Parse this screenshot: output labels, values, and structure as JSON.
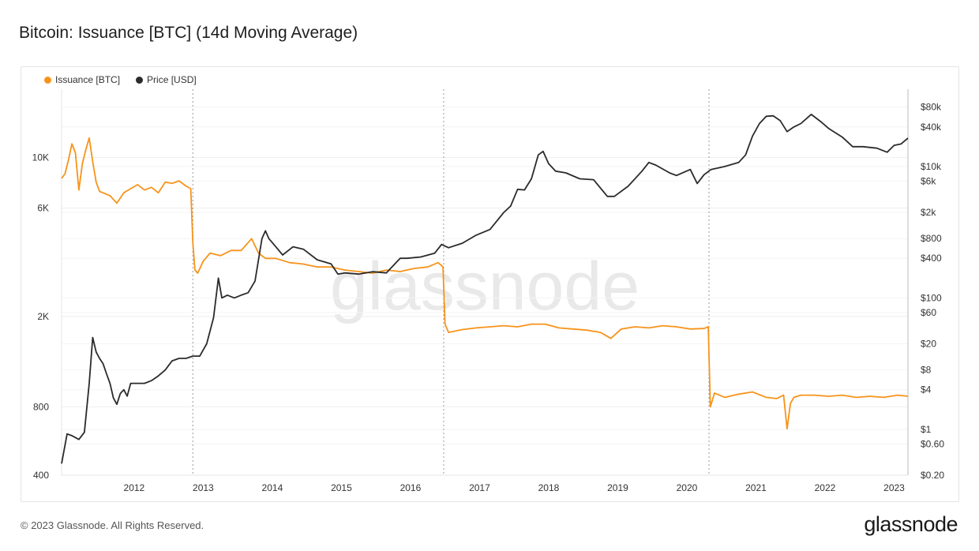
{
  "title": "Bitcoin: Issuance [BTC] (14d Moving Average)",
  "footer": "© 2023 Glassnode. All Rights Reserved.",
  "brand": "glassnode",
  "watermark": "glassnode",
  "colors": {
    "issuance": "#f7931a",
    "price": "#2b2b2b",
    "grid": "#eeeeee",
    "halving": "#999999"
  },
  "chart_data": {
    "type": "line",
    "title": "Bitcoin: Issuance [BTC] (14d Moving Average)",
    "legend": [
      "Issuance [BTC]",
      "Price [USD]"
    ],
    "legend_position": "top-left",
    "grid": true,
    "x_ticks": [
      "2012",
      "2013",
      "2014",
      "2015",
      "2016",
      "2017",
      "2018",
      "2019",
      "2020",
      "2021",
      "2022",
      "2023"
    ],
    "xlim": [
      2011.0,
      2023.25
    ],
    "y_left": {
      "label": "",
      "scale": "log",
      "ylim": [
        400,
        20000
      ],
      "ticks": [
        "400",
        "800",
        "2K",
        "6K",
        "10K"
      ],
      "tick_values": [
        400,
        800,
        2000,
        6000,
        10000
      ]
    },
    "y_right": {
      "label": "",
      "scale": "log",
      "ylim": [
        0.2,
        150000
      ],
      "ticks": [
        "$0.20",
        "$0.60",
        "$1",
        "$4",
        "$8",
        "$20",
        "$60",
        "$100",
        "$400",
        "$800",
        "$2k",
        "$6k",
        "$10k",
        "$40k",
        "$80k"
      ],
      "tick_values": [
        0.2,
        0.6,
        1,
        4,
        8,
        20,
        60,
        100,
        400,
        800,
        2000,
        6000,
        10000,
        40000,
        80000
      ]
    },
    "halvings": [
      2012.9,
      2016.53,
      2020.37
    ],
    "series": [
      {
        "name": "Issuance [BTC]",
        "axis": "left",
        "x": [
          2011.0,
          2011.05,
          2011.1,
          2011.15,
          2011.2,
          2011.25,
          2011.3,
          2011.35,
          2011.4,
          2011.45,
          2011.5,
          2011.55,
          2011.6,
          2011.7,
          2011.8,
          2011.9,
          2012.0,
          2012.1,
          2012.2,
          2012.3,
          2012.4,
          2012.5,
          2012.6,
          2012.7,
          2012.8,
          2012.87,
          2012.9,
          2012.93,
          2012.97,
          2013.05,
          2013.15,
          2013.3,
          2013.45,
          2013.6,
          2013.75,
          2013.85,
          2013.95,
          2014.1,
          2014.3,
          2014.5,
          2014.7,
          2014.9,
          2015.1,
          2015.3,
          2015.5,
          2015.7,
          2015.9,
          2016.1,
          2016.3,
          2016.45,
          2016.52,
          2016.55,
          2016.6,
          2016.8,
          2017.0,
          2017.2,
          2017.4,
          2017.6,
          2017.8,
          2018.0,
          2018.2,
          2018.4,
          2018.6,
          2018.8,
          2018.95,
          2019.1,
          2019.3,
          2019.5,
          2019.7,
          2019.9,
          2020.1,
          2020.3,
          2020.36,
          2020.39,
          2020.45,
          2020.6,
          2020.8,
          2021.0,
          2021.2,
          2021.35,
          2021.45,
          2021.5,
          2021.55,
          2021.6,
          2021.7,
          2021.9,
          2022.1,
          2022.3,
          2022.5,
          2022.7,
          2022.9,
          2023.1,
          2023.25
        ],
        "values": [
          8100,
          8500,
          9800,
          11500,
          10500,
          7200,
          9400,
          10800,
          12200,
          9600,
          7800,
          7100,
          7000,
          6800,
          6300,
          7000,
          7300,
          7600,
          7200,
          7400,
          7000,
          7800,
          7700,
          7900,
          7500,
          7300,
          4200,
          3200,
          3100,
          3500,
          3800,
          3700,
          3900,
          3900,
          4400,
          3800,
          3600,
          3600,
          3450,
          3400,
          3300,
          3300,
          3200,
          3150,
          3100,
          3200,
          3150,
          3250,
          3300,
          3450,
          3300,
          1850,
          1700,
          1750,
          1780,
          1800,
          1820,
          1800,
          1850,
          1850,
          1780,
          1760,
          1740,
          1700,
          1600,
          1760,
          1800,
          1780,
          1820,
          1800,
          1760,
          1770,
          1800,
          800,
          920,
          880,
          910,
          930,
          880,
          870,
          900,
          640,
          830,
          880,
          900,
          900,
          890,
          900,
          880,
          890,
          880,
          900,
          890
        ]
      },
      {
        "name": "Price [USD]",
        "axis": "right",
        "x": [
          2011.0,
          2011.08,
          2011.15,
          2011.25,
          2011.33,
          2011.4,
          2011.45,
          2011.5,
          2011.55,
          2011.6,
          2011.65,
          2011.7,
          2011.75,
          2011.8,
          2011.85,
          2011.9,
          2011.95,
          2012.0,
          2012.1,
          2012.2,
          2012.3,
          2012.4,
          2012.5,
          2012.6,
          2012.7,
          2012.8,
          2012.9,
          2013.0,
          2013.1,
          2013.2,
          2013.27,
          2013.32,
          2013.4,
          2013.5,
          2013.6,
          2013.7,
          2013.8,
          2013.9,
          2013.95,
          2014.0,
          2014.1,
          2014.2,
          2014.35,
          2014.5,
          2014.7,
          2014.9,
          2015.0,
          2015.1,
          2015.3,
          2015.5,
          2015.7,
          2015.9,
          2016.0,
          2016.2,
          2016.4,
          2016.5,
          2016.6,
          2016.8,
          2017.0,
          2017.2,
          2017.4,
          2017.5,
          2017.6,
          2017.7,
          2017.8,
          2017.9,
          2017.97,
          2018.05,
          2018.15,
          2018.3,
          2018.5,
          2018.7,
          2018.9,
          2019.0,
          2019.2,
          2019.4,
          2019.5,
          2019.6,
          2019.8,
          2019.9,
          2020.1,
          2020.2,
          2020.3,
          2020.4,
          2020.6,
          2020.8,
          2020.9,
          2021.0,
          2021.1,
          2021.2,
          2021.3,
          2021.4,
          2021.5,
          2021.6,
          2021.7,
          2021.85,
          2022.0,
          2022.1,
          2022.3,
          2022.45,
          2022.6,
          2022.8,
          2022.95,
          2023.05,
          2023.15,
          2023.25
        ],
        "values": [
          0.3,
          0.85,
          0.8,
          0.7,
          0.9,
          5,
          25,
          15,
          12,
          10,
          7,
          5,
          3,
          2.4,
          3.5,
          4,
          3.2,
          5,
          5,
          5,
          5.5,
          6.5,
          8,
          11,
          12,
          12,
          13,
          13,
          20,
          50,
          200,
          100,
          110,
          100,
          110,
          120,
          180,
          800,
          1050,
          800,
          600,
          450,
          600,
          550,
          380,
          330,
          230,
          240,
          230,
          250,
          240,
          400,
          400,
          420,
          480,
          650,
          580,
          680,
          900,
          1100,
          2000,
          2500,
          4500,
          4400,
          6500,
          15000,
          17000,
          11000,
          8500,
          8000,
          6500,
          6300,
          3500,
          3500,
          5000,
          8500,
          11500,
          10500,
          8000,
          7300,
          9000,
          5500,
          7500,
          9000,
          10000,
          11500,
          15000,
          29000,
          45000,
          58000,
          59000,
          50000,
          34000,
          40000,
          45000,
          62000,
          47000,
          38000,
          28000,
          20000,
          20000,
          19000,
          16500,
          21000,
          22000,
          27000
        ]
      }
    ]
  }
}
